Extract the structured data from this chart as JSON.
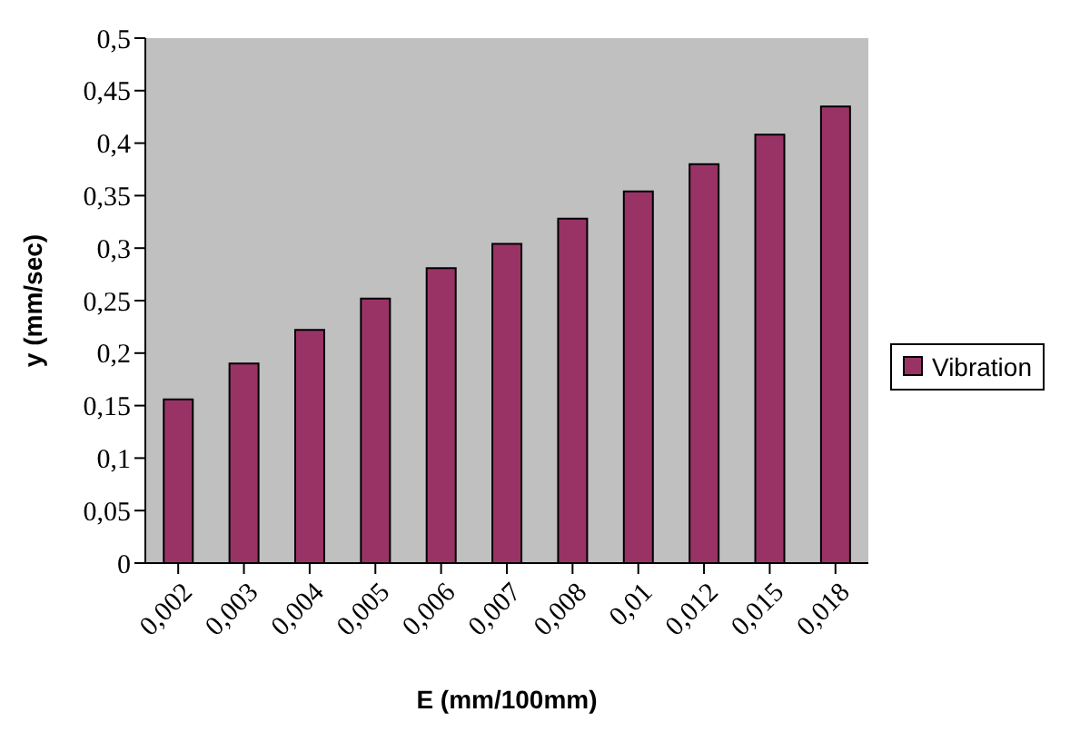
{
  "chart_data": {
    "type": "bar",
    "xlabel": "E (mm/100mm)",
    "ylabel": "y (mm/sec)",
    "categories": [
      "0,002",
      "0,003",
      "0,004",
      "0,005",
      "0,006",
      "0,007",
      "0,008",
      "0,01",
      "0,012",
      "0,015",
      "0,018"
    ],
    "series": [
      {
        "name": "Vibration",
        "color": "#993366",
        "values": [
          0.156,
          0.19,
          0.222,
          0.252,
          0.281,
          0.304,
          0.328,
          0.354,
          0.38,
          0.408,
          0.435
        ]
      }
    ],
    "ylim": [
      0,
      0.5
    ],
    "yticks": [
      0,
      {
        "value": 0.05,
        "label": "0,05"
      },
      {
        "value": 0.1,
        "label": "0,1"
      },
      {
        "value": 0.15,
        "label": "0,15"
      },
      {
        "value": 0.2,
        "label": "0,2"
      },
      {
        "value": 0.25,
        "label": "0,25"
      },
      {
        "value": 0.3,
        "label": "0,3"
      },
      {
        "value": 0.35,
        "label": "0,35"
      },
      {
        "value": 0.4,
        "label": "0,4"
      },
      {
        "value": 0.45,
        "label": "0,45"
      },
      {
        "value": 0.5,
        "label": "0,5"
      }
    ],
    "grid": false,
    "legend": "right"
  }
}
